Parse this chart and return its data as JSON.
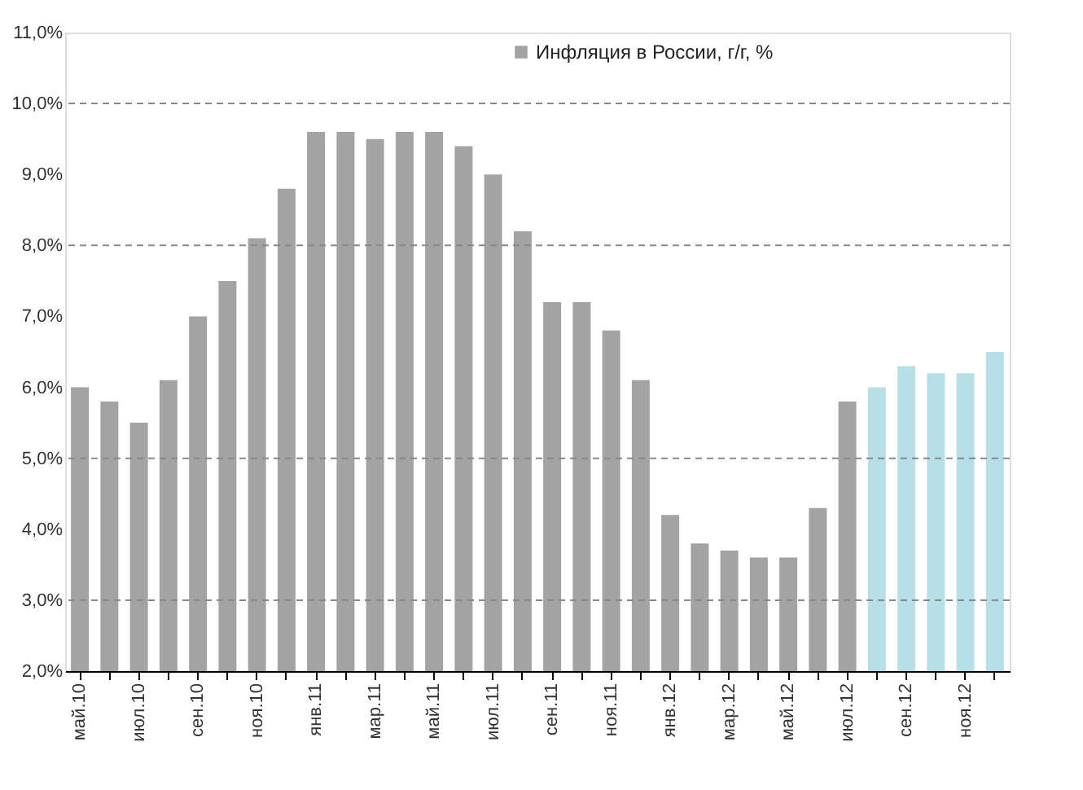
{
  "chart_data": {
    "type": "bar",
    "categories": [
      "май.10",
      null,
      "июл.10",
      null,
      "сен.10",
      null,
      "ноя.10",
      null,
      "янв.11",
      null,
      "мар.11",
      null,
      "май.11",
      null,
      "июл.11",
      null,
      "сен.11",
      null,
      "ноя.11",
      null,
      "янв.12",
      null,
      "мар.12",
      null,
      "май.12",
      null,
      "июл.12",
      null,
      "сен.12",
      null,
      "ноя.12",
      null
    ],
    "series": [
      {
        "name": "Инфляция в России, г/г, %",
        "color": "#a3a3a3",
        "values": [
          6.0,
          5.8,
          5.5,
          6.1,
          7.0,
          7.5,
          8.1,
          8.8,
          9.6,
          9.6,
          9.5,
          9.6,
          9.6,
          9.4,
          9.0,
          8.2,
          7.2,
          7.2,
          6.8,
          6.1,
          4.2,
          3.8,
          3.7,
          3.6,
          3.6,
          4.3,
          5.8,
          6.0,
          6.3,
          6.2,
          6.2,
          6.5
        ],
        "colors": [
          "#a3a3a3",
          "#a3a3a3",
          "#a3a3a3",
          "#a3a3a3",
          "#a3a3a3",
          "#a3a3a3",
          "#a3a3a3",
          "#a3a3a3",
          "#a3a3a3",
          "#a3a3a3",
          "#a3a3a3",
          "#a3a3a3",
          "#a3a3a3",
          "#a3a3a3",
          "#a3a3a3",
          "#a3a3a3",
          "#a3a3a3",
          "#a3a3a3",
          "#a3a3a3",
          "#a3a3a3",
          "#a3a3a3",
          "#a3a3a3",
          "#a3a3a3",
          "#a3a3a3",
          "#a3a3a3",
          "#a3a3a3",
          "#a3a3a3",
          "#b8dfe8",
          "#b8dfe8",
          "#b8dfe8",
          "#b8dfe8",
          "#b8dfe8"
        ]
      }
    ],
    "ylim": [
      2,
      11
    ],
    "yticks": [
      {
        "value": 2,
        "label": "2,0%"
      },
      {
        "value": 3,
        "label": "3,0%"
      },
      {
        "value": 4,
        "label": "4,0%"
      },
      {
        "value": 5,
        "label": "5,0%"
      },
      {
        "value": 6,
        "label": "6,0%"
      },
      {
        "value": 7,
        "label": "7,0%"
      },
      {
        "value": 8,
        "label": "8,0%"
      },
      {
        "value": 9,
        "label": "9,0%"
      },
      {
        "value": 10,
        "label": "10,0%"
      },
      {
        "value": 11,
        "label": "11,0%"
      }
    ],
    "ref_lines": [
      {
        "axis": "y",
        "value": 3,
        "line_style": "dashed",
        "color": "#888888"
      },
      {
        "axis": "y",
        "value": 5,
        "line_style": "dashed",
        "color": "#888888"
      },
      {
        "axis": "y",
        "value": 8,
        "line_style": "dashed",
        "color": "#888888"
      },
      {
        "axis": "y",
        "value": 10,
        "line_style": "dashed",
        "color": "#888888"
      }
    ],
    "legend": "top right"
  }
}
